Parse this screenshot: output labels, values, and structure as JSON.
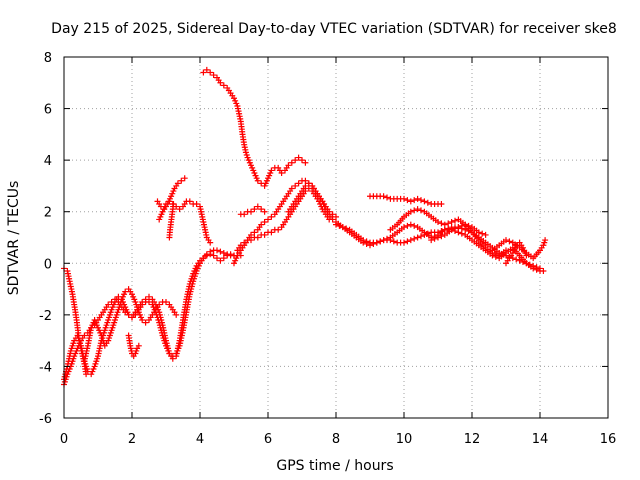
{
  "chart_data": {
    "type": "scatter",
    "title": "Day 215 of 2025, Sidereal Day-to-day VTEC variation (SDTVAR) for receiver ske8",
    "xlabel": "GPS time / hours",
    "ylabel": "SDTVAR / TECUs",
    "xlim": [
      0,
      16
    ],
    "ylim": [
      -6,
      8
    ],
    "xticks": [
      "0",
      "2",
      "4",
      "6",
      "8",
      "10",
      "12",
      "14",
      "16"
    ],
    "yticks": [
      "-6",
      "-4",
      "-2",
      "0",
      "2",
      "4",
      "6",
      "8"
    ],
    "grid": true,
    "marker": "+",
    "color": "#ff0000",
    "series": [
      {
        "x": [
          0.0,
          0.1,
          0.15,
          0.2,
          0.25,
          0.3,
          0.35,
          0.4,
          0.45,
          0.5,
          0.55,
          0.6,
          0.65
        ],
        "y": [
          -0.2,
          -0.3,
          -0.6,
          -0.9,
          -1.2,
          -1.6,
          -2.0,
          -2.5,
          -3.0,
          -3.3,
          -3.6,
          -3.9,
          -4.3
        ]
      },
      {
        "x": [
          0.0,
          0.05,
          0.1,
          0.2,
          0.3,
          0.4,
          0.5,
          0.6,
          0.7,
          0.8,
          0.9,
          1.0,
          1.1,
          1.2,
          1.3,
          1.4,
          1.5,
          1.6,
          1.7,
          1.8,
          1.9,
          2.0,
          2.1,
          2.2,
          2.3,
          2.4,
          2.5,
          2.6,
          2.7,
          2.8,
          2.9,
          3.0,
          3.1,
          3.2,
          3.3,
          3.4,
          3.5,
          3.6,
          3.7,
          3.8,
          3.9,
          4.0,
          4.1,
          4.2,
          4.3,
          4.4,
          4.5,
          4.6,
          4.7,
          4.8,
          4.9,
          5.0
        ],
        "y": [
          -4.7,
          -4.5,
          -4.3,
          -4.0,
          -3.6,
          -3.3,
          -3.0,
          -2.8,
          -2.7,
          -2.5,
          -2.4,
          -2.2,
          -2.0,
          -1.8,
          -1.6,
          -1.5,
          -1.4,
          -1.5,
          -1.7,
          -1.9,
          -2.0,
          -2.1,
          -1.9,
          -1.7,
          -1.5,
          -1.4,
          -1.3,
          -1.4,
          -1.6,
          -1.9,
          -2.4,
          -3.0,
          -3.5,
          -3.7,
          -3.6,
          -3.0,
          -2.2,
          -1.4,
          -0.8,
          -0.4,
          -0.1,
          0.1,
          0.2,
          0.3,
          0.35,
          0.3,
          0.2,
          0.1,
          0.2,
          0.3,
          0.35,
          0.3
        ]
      },
      {
        "x": [
          0.0,
          0.1,
          0.2,
          0.3,
          0.4,
          0.5,
          0.6,
          0.7,
          0.8,
          0.9,
          1.0,
          1.1,
          1.2,
          1.3,
          1.4,
          1.5,
          1.6,
          1.7,
          1.8,
          1.9,
          2.0,
          2.1,
          2.2,
          2.3,
          2.4,
          2.5,
          2.6,
          2.7,
          2.8,
          2.9,
          3.0,
          3.1,
          3.2,
          3.3,
          3.4,
          3.5,
          3.6,
          3.7,
          3.8,
          3.9,
          4.0,
          4.1,
          4.2,
          4.3,
          4.4,
          4.5,
          4.6,
          4.7,
          4.8,
          4.9,
          5.0,
          5.1,
          5.2
        ],
        "y": [
          -4.5,
          -4.0,
          -3.4,
          -3.0,
          -2.8,
          -3.2,
          -3.8,
          -4.2,
          -4.3,
          -4.0,
          -3.6,
          -3.0,
          -2.6,
          -2.2,
          -1.8,
          -1.5,
          -1.3,
          -1.4,
          -1.7,
          -2.0,
          -2.1,
          -2.0,
          -1.8,
          -1.6,
          -1.5,
          -1.5,
          -1.6,
          -1.9,
          -2.3,
          -2.8,
          -3.2,
          -3.5,
          -3.6,
          -3.5,
          -3.2,
          -2.6,
          -1.9,
          -1.2,
          -0.7,
          -0.3,
          0.0,
          0.2,
          0.35,
          0.45,
          0.5,
          0.5,
          0.45,
          0.4,
          0.35,
          0.3,
          0.3,
          0.3,
          0.3
        ]
      },
      {
        "x": [
          0.6,
          0.7,
          0.8,
          0.9,
          1.0,
          1.1,
          1.2,
          1.3,
          1.4,
          1.5,
          1.6,
          1.7,
          1.8,
          1.9,
          2.0,
          2.1,
          2.2,
          2.3,
          2.4,
          2.5,
          2.6,
          2.7,
          2.8,
          2.9,
          3.0,
          3.1,
          3.2,
          3.3
        ],
        "y": [
          -3.8,
          -3.2,
          -2.5,
          -2.2,
          -2.5,
          -2.8,
          -3.2,
          -3.0,
          -2.6,
          -2.2,
          -1.8,
          -1.4,
          -1.1,
          -1.0,
          -1.2,
          -1.5,
          -1.9,
          -2.2,
          -2.3,
          -2.2,
          -2.0,
          -1.8,
          -1.6,
          -1.5,
          -1.5,
          -1.6,
          -1.8,
          -2.0
        ]
      },
      {
        "x": [
          1.9,
          1.95,
          2.0,
          2.05,
          2.1,
          2.15,
          2.2
        ],
        "y": [
          -2.8,
          -3.2,
          -3.5,
          -3.6,
          -3.5,
          -3.3,
          -3.2
        ]
      },
      {
        "x": [
          2.75,
          2.85,
          2.95,
          3.05,
          3.15,
          3.25,
          3.35,
          3.45,
          3.55
        ],
        "y": [
          2.4,
          2.2,
          2.1,
          2.3,
          2.6,
          2.9,
          3.1,
          3.2,
          3.3
        ]
      },
      {
        "x": [
          2.8,
          2.9,
          3.0,
          3.1,
          3.2,
          3.3,
          3.4,
          3.5,
          3.6,
          3.7,
          3.8,
          3.9,
          4.0,
          4.1,
          4.2,
          4.3
        ],
        "y": [
          1.7,
          2.0,
          2.3,
          2.4,
          2.3,
          2.2,
          2.1,
          2.2,
          2.4,
          2.4,
          2.3,
          2.3,
          2.2,
          1.6,
          1.0,
          0.8
        ]
      },
      {
        "x": [
          3.1,
          3.12,
          3.14,
          3.16,
          3.18,
          3.2,
          3.22
        ],
        "y": [
          1.0,
          1.3,
          1.5,
          1.7,
          1.9,
          2.1,
          2.3
        ]
      },
      {
        "x": [
          4.1,
          4.2,
          4.3,
          4.4,
          4.5,
          4.6,
          4.7,
          4.8,
          4.9,
          5.0,
          5.1,
          5.2,
          5.25,
          5.3,
          5.35,
          5.4,
          5.5,
          5.6,
          5.7,
          5.8,
          5.9,
          6.0,
          6.1,
          6.2,
          6.3,
          6.4,
          6.5,
          6.6,
          6.7,
          6.8,
          6.9,
          7.0,
          7.1
        ],
        "y": [
          7.4,
          7.5,
          7.4,
          7.3,
          7.2,
          7.0,
          6.9,
          6.8,
          6.6,
          6.4,
          6.1,
          5.5,
          5.0,
          4.6,
          4.3,
          4.1,
          3.8,
          3.5,
          3.2,
          3.1,
          3.0,
          3.3,
          3.6,
          3.7,
          3.7,
          3.5,
          3.6,
          3.8,
          3.9,
          4.0,
          4.1,
          4.0,
          3.9
        ]
      },
      {
        "x": [
          5.0,
          5.1,
          5.2,
          5.3,
          5.4,
          5.5,
          5.6,
          5.7,
          5.8,
          5.9,
          6.0,
          6.1,
          6.2,
          6.3,
          6.4,
          6.5,
          6.6,
          6.7,
          6.8,
          6.9,
          7.0,
          7.1,
          7.2,
          7.3,
          7.4,
          7.5,
          7.6,
          7.7,
          7.8,
          7.9,
          8.0
        ],
        "y": [
          0.0,
          0.3,
          0.5,
          0.7,
          0.9,
          1.1,
          1.2,
          1.3,
          1.5,
          1.6,
          1.7,
          1.8,
          1.9,
          2.1,
          2.3,
          2.5,
          2.7,
          2.9,
          3.0,
          3.1,
          3.2,
          3.2,
          3.1,
          3.0,
          2.8,
          2.6,
          2.4,
          2.2,
          2.0,
          1.9,
          1.8
        ]
      },
      {
        "x": [
          5.1,
          5.2,
          5.3,
          5.4,
          5.5,
          5.6,
          5.7,
          5.8,
          5.9,
          6.0,
          6.1,
          6.2,
          6.3,
          6.4,
          6.5,
          6.6,
          6.7,
          6.8,
          6.9,
          7.0,
          7.1,
          7.2,
          7.3,
          7.4,
          7.5,
          7.6,
          7.7,
          7.8
        ],
        "y": [
          0.5,
          0.7,
          0.8,
          0.9,
          0.9,
          1.0,
          1.0,
          1.1,
          1.1,
          1.2,
          1.2,
          1.3,
          1.3,
          1.4,
          1.6,
          1.8,
          2.0,
          2.2,
          2.4,
          2.6,
          2.8,
          2.9,
          2.8,
          2.6,
          2.4,
          2.1,
          1.9,
          1.7
        ]
      },
      {
        "x": [
          5.2,
          5.3,
          5.4,
          5.5,
          5.6,
          5.7,
          5.8,
          5.9
        ],
        "y": [
          1.9,
          1.9,
          2.0,
          2.0,
          2.1,
          2.2,
          2.1,
          2.0
        ]
      },
      {
        "x": [
          6.6,
          6.7,
          6.8,
          6.9,
          7.0,
          7.1,
          7.2,
          7.3,
          7.4,
          7.5,
          7.6,
          7.7,
          7.8,
          7.9,
          8.0,
          8.2,
          8.4,
          8.6,
          8.8,
          9.0,
          9.2,
          9.4,
          9.6,
          9.8,
          10.0,
          10.2,
          10.4,
          10.6,
          10.8,
          11.0,
          11.2,
          11.4,
          11.6,
          11.8,
          12.0,
          12.2,
          12.4,
          12.6,
          12.8,
          13.0,
          13.2,
          13.4,
          13.6,
          13.8,
          14.0,
          14.1
        ],
        "y": [
          2.0,
          2.2,
          2.4,
          2.6,
          2.8,
          3.0,
          3.1,
          3.0,
          2.8,
          2.6,
          2.4,
          2.1,
          1.9,
          1.7,
          1.6,
          1.4,
          1.3,
          1.1,
          0.9,
          0.8,
          0.8,
          0.9,
          1.0,
          1.2,
          1.4,
          1.5,
          1.4,
          1.2,
          1.0,
          1.1,
          1.3,
          1.4,
          1.4,
          1.3,
          1.2,
          1.0,
          0.8,
          0.6,
          0.4,
          0.3,
          0.2,
          0.1,
          0.0,
          -0.1,
          -0.2,
          -0.3
        ]
      },
      {
        "x": [
          8.0,
          8.2,
          8.4,
          8.6,
          8.8,
          9.0,
          9.2,
          9.4,
          9.6,
          9.8,
          10.0,
          10.2,
          10.4,
          10.6,
          10.8,
          11.0,
          11.2,
          11.4,
          11.6,
          11.8,
          12.0,
          12.2,
          12.4,
          12.6,
          12.8,
          13.0,
          13.2,
          13.4,
          13.6,
          13.8,
          14.0
        ],
        "y": [
          1.5,
          1.4,
          1.2,
          1.0,
          0.8,
          0.7,
          0.8,
          0.9,
          0.9,
          0.8,
          0.8,
          0.9,
          1.0,
          1.1,
          1.2,
          1.2,
          1.3,
          1.3,
          1.2,
          1.1,
          0.9,
          0.7,
          0.5,
          0.3,
          0.2,
          0.4,
          0.6,
          0.3,
          0.0,
          -0.2,
          -0.3
        ]
      },
      {
        "x": [
          9.0,
          9.2,
          9.4,
          9.6,
          9.8,
          10.0,
          10.2,
          10.4,
          10.6,
          10.8,
          11.0,
          11.1
        ],
        "y": [
          2.6,
          2.6,
          2.6,
          2.5,
          2.5,
          2.5,
          2.4,
          2.5,
          2.4,
          2.3,
          2.3,
          2.3
        ]
      },
      {
        "x": [
          9.6,
          9.8,
          10.0,
          10.2,
          10.4,
          10.6,
          10.8,
          11.0,
          11.2,
          11.4,
          11.6,
          11.8,
          12.0,
          12.2,
          12.4,
          12.6,
          12.8,
          13.0
        ],
        "y": [
          1.3,
          1.5,
          1.8,
          2.0,
          2.1,
          2.0,
          1.8,
          1.6,
          1.5,
          1.6,
          1.7,
          1.5,
          1.2,
          0.9,
          0.6,
          0.4,
          0.3,
          0.5
        ]
      },
      {
        "x": [
          10.8,
          11.0,
          11.2,
          11.4,
          11.6,
          11.8,
          12.0,
          12.2,
          12.4
        ],
        "y": [
          0.9,
          1.0,
          1.1,
          1.3,
          1.4,
          1.5,
          1.4,
          1.2,
          1.1
        ]
      },
      {
        "x": [
          12.6,
          12.8,
          13.0,
          13.2,
          13.4,
          13.6,
          13.8,
          14.0,
          14.1,
          14.15
        ],
        "y": [
          0.5,
          0.7,
          0.9,
          0.8,
          0.6,
          0.4,
          0.2,
          0.5,
          0.7,
          0.9
        ]
      },
      {
        "x": [
          13.0,
          13.1,
          13.2,
          13.3,
          13.4,
          13.5,
          13.6
        ],
        "y": [
          0.0,
          0.2,
          0.4,
          0.7,
          0.8,
          0.6,
          0.3
        ]
      }
    ]
  }
}
